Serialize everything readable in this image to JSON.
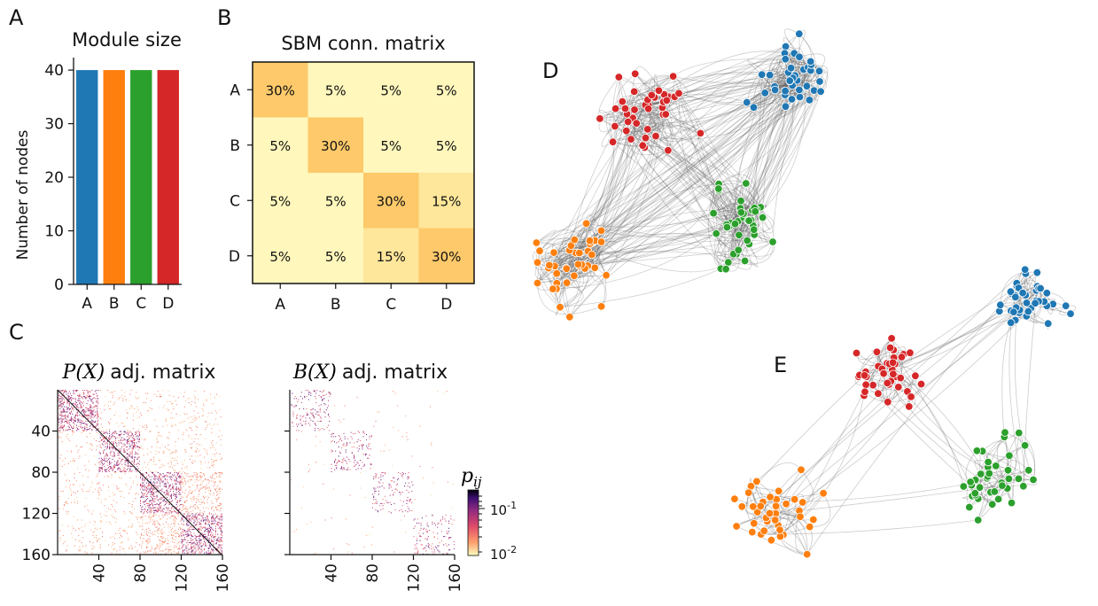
{
  "panel_labels": {
    "a": "A",
    "b": "B",
    "c": "C",
    "d": "D",
    "e": "E"
  },
  "chart_data": [
    {
      "type": "bar",
      "title": "Module size",
      "ylabel": "Number of nodes",
      "categories": [
        "A",
        "B",
        "C",
        "D"
      ],
      "values": [
        40,
        40,
        40,
        40
      ],
      "ylim": [
        0,
        42
      ],
      "yticks": [
        0,
        10,
        20,
        30,
        40
      ],
      "colors": [
        "#1f77b4",
        "#ff7f0e",
        "#2ca02c",
        "#d62728"
      ],
      "grid": false
    },
    {
      "type": "heatmap",
      "title": "SBM conn. matrix",
      "row_labels": [
        "A",
        "B",
        "C",
        "D"
      ],
      "col_labels": [
        "A",
        "B",
        "C",
        "D"
      ],
      "values": [
        [
          30,
          5,
          5,
          5
        ],
        [
          5,
          30,
          5,
          5
        ],
        [
          5,
          5,
          30,
          15
        ],
        [
          5,
          5,
          15,
          30
        ]
      ],
      "cell_text": [
        [
          "30%",
          "5%",
          "5%",
          "5%"
        ],
        [
          "5%",
          "30%",
          "5%",
          "5%"
        ],
        [
          "5%",
          "5%",
          "30%",
          "15%"
        ],
        [
          "5%",
          "5%",
          "15%",
          "30%"
        ]
      ],
      "colors": {
        "low": "#fff7bc",
        "mid": "#fee69a",
        "high": "#fdc96a"
      }
    },
    {
      "type": "heatmap",
      "title_math": "P(X)",
      "title_text": "adj. matrix",
      "n": 160,
      "yticks": [
        "40",
        "80",
        "120",
        "160"
      ],
      "xticks": [
        "40",
        "80",
        "120",
        "160"
      ],
      "block_density": 0.3,
      "offblock_density": 0.05,
      "cross_density_CD": 0.15,
      "diagonal_line": true
    },
    {
      "type": "heatmap",
      "title_math": "B(X)",
      "title_text": "adj. matrix",
      "n": 160,
      "xticks": [
        "40",
        "80",
        "120",
        "160"
      ],
      "block_density": 0.09,
      "offblock_density": 0.004
    },
    {
      "type": "colorbar",
      "label_math": "p",
      "label_sub": "ij",
      "scale": "log",
      "ticks": [
        {
          "base": "10",
          "exp": "-1"
        },
        {
          "base": "10",
          "exp": "-2"
        }
      ],
      "range": [
        0.01,
        0.3
      ]
    },
    {
      "type": "scatter",
      "description_kind": "network",
      "group_colors": {
        "A": "#1f77b4",
        "B": "#ff7f0e",
        "C": "#2ca02c",
        "D": "#d62728"
      },
      "edge_color": "#444444",
      "nodes_per_group": 40
    },
    {
      "type": "scatter",
      "description_kind": "network",
      "group_colors": {
        "A": "#1f77b4",
        "B": "#ff7f0e",
        "C": "#2ca02c",
        "D": "#d62728"
      },
      "edge_color": "#888888",
      "nodes_per_group": 40
    }
  ]
}
